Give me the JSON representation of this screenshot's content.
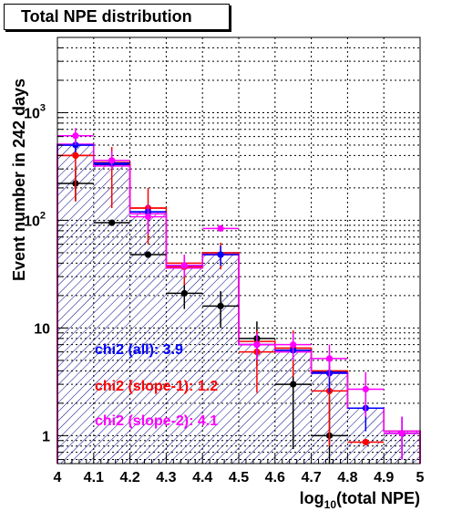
{
  "chart_data": {
    "type": "bar",
    "title": "Total NPE distribution",
    "xlabel": "log10(total NPE)",
    "xlabel_base": "log",
    "xlabel_sub": "10",
    "xlabel_rest": "(total NPE)",
    "ylabel": "Event number in 242 days",
    "xlim": [
      4,
      5
    ],
    "ylim": [
      0.55,
      5000
    ],
    "y_scale": "log",
    "grid": true,
    "x_ticks": [
      "4",
      "4.1",
      "4.2",
      "4.3",
      "4.4",
      "4.5",
      "4.6",
      "4.7",
      "4.8",
      "4.9",
      "5"
    ],
    "y_ticks": [
      {
        "value": 1,
        "label": "1"
      },
      {
        "value": 10,
        "label": "10"
      },
      {
        "value": 100,
        "label": "10",
        "exp": "2"
      },
      {
        "value": 1000,
        "label": "10",
        "exp": "3"
      }
    ],
    "histograms": [
      {
        "name": "blue",
        "color": "#0000cc",
        "bins": [
          4.0,
          4.1,
          4.2,
          4.3,
          4.4,
          4.5,
          4.6,
          4.7,
          4.8,
          4.9,
          5.0
        ],
        "values": [
          500,
          330,
          120,
          38,
          50,
          7,
          6.2,
          3.9,
          1.8,
          1.1
        ]
      },
      {
        "name": "red",
        "color": "#ff0000",
        "bins": [
          4.0,
          4.1,
          4.2,
          4.3,
          4.4,
          4.5,
          4.6,
          4.7,
          4.8,
          4.9,
          5.0
        ],
        "values": [
          400,
          345,
          130,
          40,
          50,
          7.5,
          6.5,
          4.0,
          1.8,
          1.1
        ]
      },
      {
        "name": "magenta",
        "color": "#ff00ff",
        "bins": [
          4.0,
          4.1,
          4.2,
          4.3,
          4.4,
          4.5,
          4.6,
          4.7,
          4.8,
          4.9,
          5.0
        ],
        "values": [
          510,
          320,
          115,
          36,
          48,
          7.0,
          6.0,
          3.8,
          1.8,
          1.1
        ]
      }
    ],
    "series": [
      {
        "name": "black",
        "color": "#000000",
        "points": [
          {
            "x": 4.05,
            "y": 220,
            "ylo": 150,
            "yhi": 290
          },
          {
            "x": 4.15,
            "y": 95,
            "ylo": 0,
            "yhi": 0
          },
          {
            "x": 4.25,
            "y": 48,
            "ylo": 0,
            "yhi": 0
          },
          {
            "x": 4.35,
            "y": 21,
            "ylo": 15,
            "yhi": 27
          },
          {
            "x": 4.45,
            "y": 16,
            "ylo": 10,
            "yhi": 22
          },
          {
            "x": 4.55,
            "y": 8,
            "ylo": 4.5,
            "yhi": 11.5
          },
          {
            "x": 4.65,
            "y": 3.0,
            "ylo": 0.75,
            "yhi": 5.5
          },
          {
            "x": 4.75,
            "y": 1.0,
            "ylo": 0.55,
            "yhi": 2.3
          }
        ]
      },
      {
        "name": "red",
        "color": "#ff0000",
        "points": [
          {
            "x": 4.05,
            "y": 400,
            "ylo": 150,
            "yhi": 600
          },
          {
            "x": 4.15,
            "y": 360,
            "ylo": 130,
            "yhi": 480
          },
          {
            "x": 4.25,
            "y": 130,
            "ylo": 60,
            "yhi": 200
          },
          {
            "x": 4.35,
            "y": 37,
            "ylo": 25,
            "yhi": 48
          },
          {
            "x": 4.45,
            "y": 48,
            "ylo": 35,
            "yhi": 62
          },
          {
            "x": 4.55,
            "y": 6.0,
            "ylo": 2.5,
            "yhi": 9.5
          },
          {
            "x": 4.65,
            "y": 6.5,
            "ylo": 3.5,
            "yhi": 9.5
          },
          {
            "x": 4.75,
            "y": 2.6,
            "ylo": 0.8,
            "yhi": 4.5
          },
          {
            "x": 4.85,
            "y": 0.87,
            "ylo": 0,
            "yhi": 0
          }
        ]
      },
      {
        "name": "blue",
        "color": "#0000ff",
        "points": [
          {
            "x": 4.05,
            "y": 500,
            "ylo": 430,
            "yhi": 570
          },
          {
            "x": 4.15,
            "y": 340,
            "ylo": 300,
            "yhi": 380
          },
          {
            "x": 4.25,
            "y": 120,
            "ylo": 100,
            "yhi": 140
          },
          {
            "x": 4.35,
            "y": 38,
            "ylo": 33,
            "yhi": 43
          },
          {
            "x": 4.45,
            "y": 48,
            "ylo": 38,
            "yhi": 58
          },
          {
            "x": 4.55,
            "y": 7.0,
            "ylo": 5.5,
            "yhi": 8.5
          },
          {
            "x": 4.65,
            "y": 6.2,
            "ylo": 5.0,
            "yhi": 7.4
          },
          {
            "x": 4.75,
            "y": 3.8,
            "ylo": 2.5,
            "yhi": 5.2
          },
          {
            "x": 4.85,
            "y": 1.8,
            "ylo": 1.1,
            "yhi": 2.7
          },
          {
            "x": 4.95,
            "y": 1.05,
            "ylo": 0.6,
            "yhi": 1.5
          }
        ]
      },
      {
        "name": "magenta",
        "color": "#ff00ff",
        "points": [
          {
            "x": 4.05,
            "y": 610,
            "ylo": 500,
            "yhi": 720
          },
          {
            "x": 4.15,
            "y": 360,
            "ylo": 300,
            "yhi": 440
          },
          {
            "x": 4.25,
            "y": 108,
            "ylo": 75,
            "yhi": 140
          },
          {
            "x": 4.35,
            "y": 38,
            "ylo": 30,
            "yhi": 48
          },
          {
            "x": 4.45,
            "y": 84,
            "ylo": 0,
            "yhi": 0
          },
          {
            "x": 4.55,
            "y": 7.0,
            "ylo": 5.0,
            "yhi": 9.0
          },
          {
            "x": 4.65,
            "y": 7.0,
            "ylo": 5.0,
            "yhi": 9.0
          },
          {
            "x": 4.75,
            "y": 5.2,
            "ylo": 3.5,
            "yhi": 7.0
          },
          {
            "x": 4.85,
            "y": 2.7,
            "ylo": 1.5,
            "yhi": 3.9
          },
          {
            "x": 4.95,
            "y": 1.05,
            "ylo": 0.6,
            "yhi": 1.5
          }
        ]
      }
    ],
    "annotations": [
      {
        "text": "chi2 (all): 3.9",
        "color": "#0000ff"
      },
      {
        "text": "chi2 (slope-1): 1.2",
        "color": "#ff0000"
      },
      {
        "text": "chi2 (slope-2): 4.1",
        "color": "#ff00ff"
      }
    ]
  }
}
